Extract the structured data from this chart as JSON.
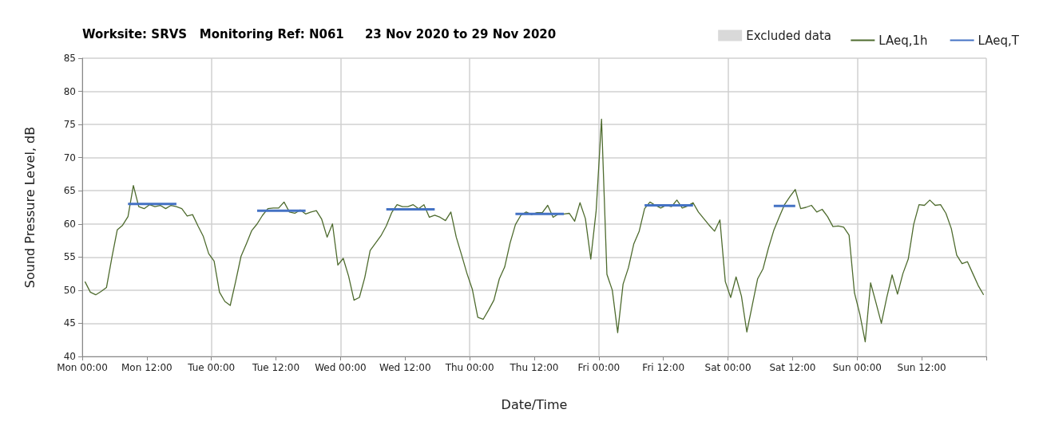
{
  "chart_data": {
    "type": "line",
    "title": "Worksite: SRVS   Monitoring Ref: N061     23 Nov 2020 to 29 Nov 2020",
    "xlabel": "Date/Time",
    "ylabel": "Sound Pressure Level, dB",
    "xlim": [
      "2020-11-23T00:00",
      "2020-11-30T00:00"
    ],
    "ylim": [
      40,
      85
    ],
    "xticks": [
      {
        "value": "2020-11-23T00:00",
        "label": "Mon 00:00"
      },
      {
        "value": "2020-11-23T12:00",
        "label": "Mon 12:00"
      },
      {
        "value": "2020-11-24T00:00",
        "label": "Tue 00:00"
      },
      {
        "value": "2020-11-24T12:00",
        "label": "Tue 12:00"
      },
      {
        "value": "2020-11-25T00:00",
        "label": "Wed 00:00"
      },
      {
        "value": "2020-11-25T12:00",
        "label": "Wed 12:00"
      },
      {
        "value": "2020-11-26T00:00",
        "label": "Thu 00:00"
      },
      {
        "value": "2020-11-26T12:00",
        "label": "Thu 12:00"
      },
      {
        "value": "2020-11-27T00:00",
        "label": "Fri 00:00"
      },
      {
        "value": "2020-11-27T12:00",
        "label": "Fri 12:00"
      },
      {
        "value": "2020-11-28T00:00",
        "label": "Sat 00:00"
      },
      {
        "value": "2020-11-28T12:00",
        "label": "Sat 12:00"
      },
      {
        "value": "2020-11-29T00:00",
        "label": "Sun 00:00"
      },
      {
        "value": "2020-11-29T12:00",
        "label": "Sun 12:00"
      },
      {
        "value": "2020-11-30T00:00",
        "label": null
      }
    ],
    "yticks": [
      40,
      45,
      50,
      55,
      60,
      65,
      70,
      75,
      80,
      85
    ],
    "grid": true,
    "legend": "top right",
    "marker": "none",
    "line_style": "solid",
    "series": [
      {
        "name": "Excluded data",
        "type": "bar",
        "color": "#d9d9d9"
      },
      {
        "name": "LAeq,1h",
        "color": "#4e6b2e",
        "x": [
          "2020-11-23T00:30",
          "2020-11-23T01:30",
          "2020-11-23T02:30",
          "2020-11-23T03:30",
          "2020-11-23T04:30",
          "2020-11-23T05:30",
          "2020-11-23T06:30",
          "2020-11-23T07:30",
          "2020-11-23T08:30",
          "2020-11-23T09:30",
          "2020-11-23T10:30",
          "2020-11-23T11:30",
          "2020-11-23T12:30",
          "2020-11-23T13:30",
          "2020-11-23T14:30",
          "2020-11-23T15:30",
          "2020-11-23T16:30",
          "2020-11-23T17:30",
          "2020-11-23T18:30",
          "2020-11-23T19:30",
          "2020-11-23T20:30",
          "2020-11-23T21:30",
          "2020-11-23T22:30",
          "2020-11-23T23:30",
          "2020-11-24T00:30",
          "2020-11-24T01:30",
          "2020-11-24T02:30",
          "2020-11-24T03:30",
          "2020-11-24T04:30",
          "2020-11-24T05:30",
          "2020-11-24T06:30",
          "2020-11-24T07:30",
          "2020-11-24T08:30",
          "2020-11-24T09:30",
          "2020-11-24T10:30",
          "2020-11-24T11:30",
          "2020-11-24T12:30",
          "2020-11-24T13:30",
          "2020-11-24T14:30",
          "2020-11-24T15:30",
          "2020-11-24T16:30",
          "2020-11-24T17:30",
          "2020-11-24T18:30",
          "2020-11-24T19:30",
          "2020-11-24T20:30",
          "2020-11-24T21:30",
          "2020-11-24T22:30",
          "2020-11-24T23:30",
          "2020-11-25T00:30",
          "2020-11-25T01:30",
          "2020-11-25T02:30",
          "2020-11-25T03:30",
          "2020-11-25T04:30",
          "2020-11-25T05:30",
          "2020-11-25T06:30",
          "2020-11-25T07:30",
          "2020-11-25T08:30",
          "2020-11-25T09:30",
          "2020-11-25T10:30",
          "2020-11-25T11:30",
          "2020-11-25T12:30",
          "2020-11-25T13:30",
          "2020-11-25T14:30",
          "2020-11-25T15:30",
          "2020-11-25T16:30",
          "2020-11-25T17:30",
          "2020-11-25T18:30",
          "2020-11-25T19:30",
          "2020-11-25T20:30",
          "2020-11-25T21:30",
          "2020-11-25T22:30",
          "2020-11-25T23:30",
          "2020-11-26T00:30",
          "2020-11-26T01:30",
          "2020-11-26T02:30",
          "2020-11-26T03:30",
          "2020-11-26T04:30",
          "2020-11-26T05:30",
          "2020-11-26T06:30",
          "2020-11-26T07:30",
          "2020-11-26T08:30",
          "2020-11-26T09:30",
          "2020-11-26T10:30",
          "2020-11-26T11:30",
          "2020-11-26T12:30",
          "2020-11-26T13:30",
          "2020-11-26T14:30",
          "2020-11-26T15:30",
          "2020-11-26T16:30",
          "2020-11-26T17:30",
          "2020-11-26T18:30",
          "2020-11-26T19:30",
          "2020-11-26T20:30",
          "2020-11-26T21:30",
          "2020-11-26T22:30",
          "2020-11-26T23:30",
          "2020-11-27T00:30",
          "2020-11-27T01:30",
          "2020-11-27T02:30",
          "2020-11-27T03:30",
          "2020-11-27T04:30",
          "2020-11-27T05:30",
          "2020-11-27T06:30",
          "2020-11-27T07:30",
          "2020-11-27T08:30",
          "2020-11-27T09:30",
          "2020-11-27T10:30",
          "2020-11-27T11:30",
          "2020-11-27T12:30",
          "2020-11-27T13:30",
          "2020-11-27T14:30",
          "2020-11-27T15:30",
          "2020-11-27T16:30",
          "2020-11-27T17:30",
          "2020-11-27T18:30",
          "2020-11-27T19:30",
          "2020-11-27T20:30",
          "2020-11-27T21:30",
          "2020-11-27T22:30",
          "2020-11-27T23:30",
          "2020-11-28T00:30",
          "2020-11-28T01:30",
          "2020-11-28T02:30",
          "2020-11-28T03:30",
          "2020-11-28T04:30",
          "2020-11-28T05:30",
          "2020-11-28T06:30",
          "2020-11-28T07:30",
          "2020-11-28T08:30",
          "2020-11-28T09:30",
          "2020-11-28T10:30",
          "2020-11-28T11:30",
          "2020-11-28T12:30",
          "2020-11-28T13:30",
          "2020-11-28T14:30",
          "2020-11-28T15:30",
          "2020-11-28T16:30",
          "2020-11-28T17:30",
          "2020-11-28T18:30",
          "2020-11-28T19:30",
          "2020-11-28T20:30",
          "2020-11-28T21:30",
          "2020-11-28T22:30",
          "2020-11-28T23:30",
          "2020-11-29T00:30",
          "2020-11-29T01:30",
          "2020-11-29T02:30",
          "2020-11-29T03:30",
          "2020-11-29T04:30",
          "2020-11-29T05:30",
          "2020-11-29T06:30",
          "2020-11-29T07:30",
          "2020-11-29T08:30",
          "2020-11-29T09:30",
          "2020-11-29T10:30",
          "2020-11-29T11:30",
          "2020-11-29T12:30",
          "2020-11-29T13:30",
          "2020-11-29T14:30",
          "2020-11-29T15:30",
          "2020-11-29T16:30",
          "2020-11-29T17:30",
          "2020-11-29T18:30",
          "2020-11-29T19:30",
          "2020-11-29T20:30",
          "2020-11-29T21:30",
          "2020-11-29T22:30",
          "2020-11-29T23:30"
        ],
        "values": [
          51.3,
          49.7,
          49.3,
          49.8,
          50.4,
          54.9,
          59.1,
          59.8,
          61.1,
          65.8,
          62.6,
          62.3,
          62.9,
          62.6,
          62.8,
          62.3,
          62.8,
          62.6,
          62.3,
          61.2,
          61.4,
          59.7,
          58.1,
          55.5,
          54.4,
          49.7,
          48.3,
          47.7,
          51.3,
          55.1,
          57.0,
          59.0,
          60.0,
          61.3,
          62.3,
          62.4,
          62.4,
          63.3,
          61.8,
          61.6,
          62.1,
          61.5,
          61.8,
          62.0,
          60.7,
          58.0,
          60.0,
          53.8,
          54.8,
          52.1,
          48.5,
          48.9,
          51.9,
          56.0,
          57.1,
          58.2,
          59.7,
          61.7,
          62.9,
          62.6,
          62.6,
          62.9,
          62.3,
          62.9,
          61.0,
          61.3,
          61.0,
          60.5,
          61.8,
          58.0,
          55.3,
          52.5,
          50.1,
          45.9,
          45.6,
          47.0,
          48.5,
          51.7,
          53.5,
          57.1,
          59.9,
          61.3,
          61.8,
          61.4,
          61.7,
          61.7,
          62.8,
          61.0,
          61.5,
          61.5,
          61.6,
          60.4,
          63.2,
          60.8,
          54.7,
          62.0,
          75.8,
          52.4,
          50.0,
          43.6,
          50.9,
          53.4,
          57.0,
          58.9,
          62.3,
          63.3,
          62.8,
          62.4,
          62.8,
          62.6,
          63.6,
          62.4,
          62.7,
          63.2,
          61.8,
          60.8,
          59.8,
          58.9,
          60.6,
          51.3,
          48.9,
          52.0,
          49.1,
          43.7,
          47.7,
          51.7,
          53.2,
          56.3,
          59.0,
          61.0,
          62.9,
          64.1,
          65.2,
          62.3,
          62.5,
          62.8,
          61.8,
          62.2,
          61.1,
          59.6,
          59.7,
          59.5,
          58.3,
          49.6,
          46.4,
          42.2,
          51.1,
          48.1,
          45.0,
          48.9,
          52.3,
          49.4,
          52.5,
          54.7,
          59.9,
          62.9,
          62.8,
          63.6,
          62.8,
          62.9,
          61.6,
          59.3,
          55.3,
          54.0,
          54.3,
          52.5,
          50.7,
          49.3
        ]
      },
      {
        "name": "LAeq,T",
        "color": "#4472c4",
        "x": [
          "2020-11-23T08:30",
          "2020-11-23T17:30",
          "2020-11-23T20:00",
          "2020-11-24T08:30",
          "2020-11-24T17:30",
          "2020-11-24T20:00",
          "2020-11-25T08:30",
          "2020-11-25T17:30",
          "2020-11-25T20:00",
          "2020-11-26T08:30",
          "2020-11-26T17:30",
          "2020-11-26T20:00",
          "2020-11-27T08:30",
          "2020-11-27T17:30",
          "2020-11-27T20:00",
          "2020-11-28T08:30",
          "2020-11-28T12:30"
        ],
        "values": [
          63.0,
          63.0,
          null,
          62.0,
          62.0,
          null,
          62.2,
          62.2,
          null,
          61.5,
          61.5,
          null,
          62.8,
          62.8,
          null,
          62.7,
          62.7
        ]
      }
    ]
  }
}
